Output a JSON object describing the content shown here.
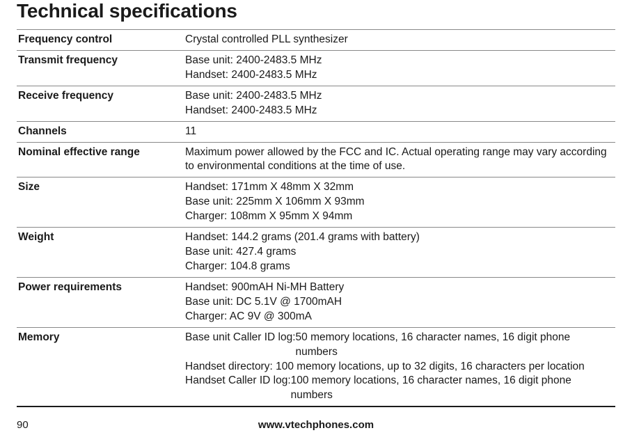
{
  "title": "Technical specifications",
  "colors": {
    "text": "#1a1a1a",
    "rule": "#888888",
    "heavy_rule": "#1a1a1a",
    "background": "#ffffff"
  },
  "rows": {
    "freq_ctrl": {
      "label": "Frequency control",
      "value": "Crystal controlled PLL synthesizer"
    },
    "tx_freq": {
      "label": "Transmit frequency",
      "l1": "Base unit: 2400-2483.5 MHz",
      "l2": "Handset: 2400-2483.5 MHz"
    },
    "rx_freq": {
      "label": "Receive frequency",
      "l1": "Base unit: 2400-2483.5 MHz",
      "l2": "Handset: 2400-2483.5 MHz"
    },
    "channels": {
      "label": "Channels",
      "value": "11"
    },
    "range": {
      "label": "Nominal effective range",
      "value": "Maximum power allowed by the FCC and IC. Actual operating range may vary according to environmental conditions at the time of use."
    },
    "size": {
      "label": "Size",
      "l1": "Handset: 171mm X 48mm X 32mm",
      "l2": "Base unit: 225mm X 106mm X 93mm",
      "l3": "Charger: 108mm X 95mm X 94mm"
    },
    "weight": {
      "label": "Weight",
      "l1": "Handset: 144.2 grams  (201.4 grams with battery)",
      "l2": "Base unit: 427.4 grams",
      "l3": "Charger: 104.8 grams"
    },
    "power": {
      "label": "Power requirements",
      "l1": "Handset: 900mAH Ni-MH Battery",
      "l2": "Base unit: DC 5.1V @ 1700mAH",
      "l3": "Charger: AC 9V @ 300mA"
    },
    "memory": {
      "label": "Memory",
      "l1_lead": "Base unit Caller ID log: ",
      "l1_rest": "50 memory locations, 16 character names, 16 digit phone numbers",
      "l2": "Handset directory: 100 memory locations, up to 32 digits, 16 characters per location",
      "l3_lead": "Handset Caller ID log: ",
      "l3_rest": "100 memory locations, 16 character names, 16 digit phone numbers"
    }
  },
  "footer": {
    "page": "90",
    "url": "www.vtechphones.com"
  }
}
